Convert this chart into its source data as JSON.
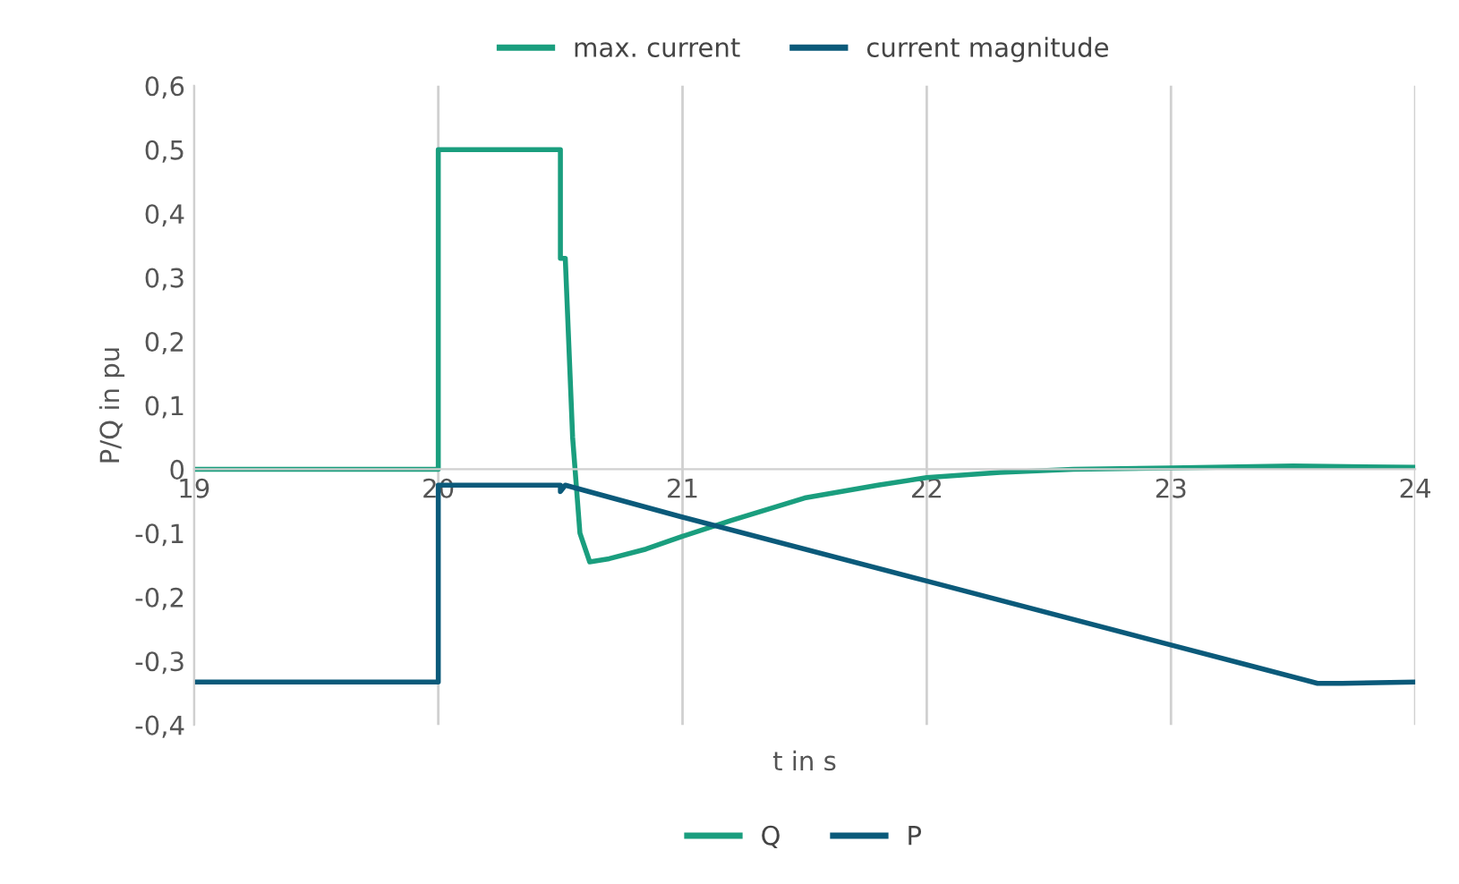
{
  "chart_data": {
    "type": "line",
    "xlabel": "t in s",
    "ylabel": "P/Q in pu",
    "xlim": [
      19,
      24
    ],
    "xticks": [
      19,
      20,
      21,
      22,
      23,
      24
    ],
    "ylim": [
      -0.4,
      0.6
    ],
    "yticks": [
      {
        "value": -0.4,
        "label": "-0,4"
      },
      {
        "value": -0.3,
        "label": "-0,3"
      },
      {
        "value": -0.2,
        "label": "-0,2"
      },
      {
        "value": -0.1,
        "label": "-0,1"
      },
      {
        "value": 0,
        "label": "0"
      },
      {
        "value": 0.1,
        "label": "0,1"
      },
      {
        "value": 0.2,
        "label": "0,2"
      },
      {
        "value": 0.3,
        "label": "0,3"
      },
      {
        "value": 0.4,
        "label": "0,4"
      },
      {
        "value": 0.5,
        "label": "0,5"
      },
      {
        "value": 0.6,
        "label": "0,6"
      }
    ],
    "grid": "x",
    "legend": "bottom",
    "marker": "none",
    "line_style": "solid",
    "series": [
      {
        "name": "max. current",
        "color": "#1a9e7e"
      },
      {
        "name": "current magnitude",
        "color": "#0b5a7a"
      },
      {
        "name": "Q",
        "color": "#1a9e7e",
        "x": [
          19,
          20,
          20,
          20.5,
          20.5,
          20.52,
          20.55,
          20.58,
          20.62,
          20.7,
          20.85,
          21,
          21.2,
          21.5,
          21.8,
          22,
          22.3,
          22.6,
          23,
          23.5,
          24
        ],
        "values": [
          0,
          0,
          0.5,
          0.5,
          0.33,
          0.33,
          0.05,
          -0.1,
          -0.145,
          -0.14,
          -0.125,
          -0.105,
          -0.08,
          -0.045,
          -0.025,
          -0.013,
          -0.005,
          0,
          0.002,
          0.005,
          0.003
        ]
      },
      {
        "name": "P",
        "color": "#0b5a7a",
        "x": [
          19,
          20,
          20,
          20.5,
          20.5,
          20.52,
          21,
          22,
          23,
          23.3,
          23.6,
          23.7,
          24
        ],
        "values": [
          -0.333,
          -0.333,
          -0.025,
          -0.025,
          -0.035,
          -0.025,
          -0.075,
          -0.175,
          -0.275,
          -0.305,
          -0.335,
          -0.335,
          -0.333
        ]
      }
    ]
  }
}
